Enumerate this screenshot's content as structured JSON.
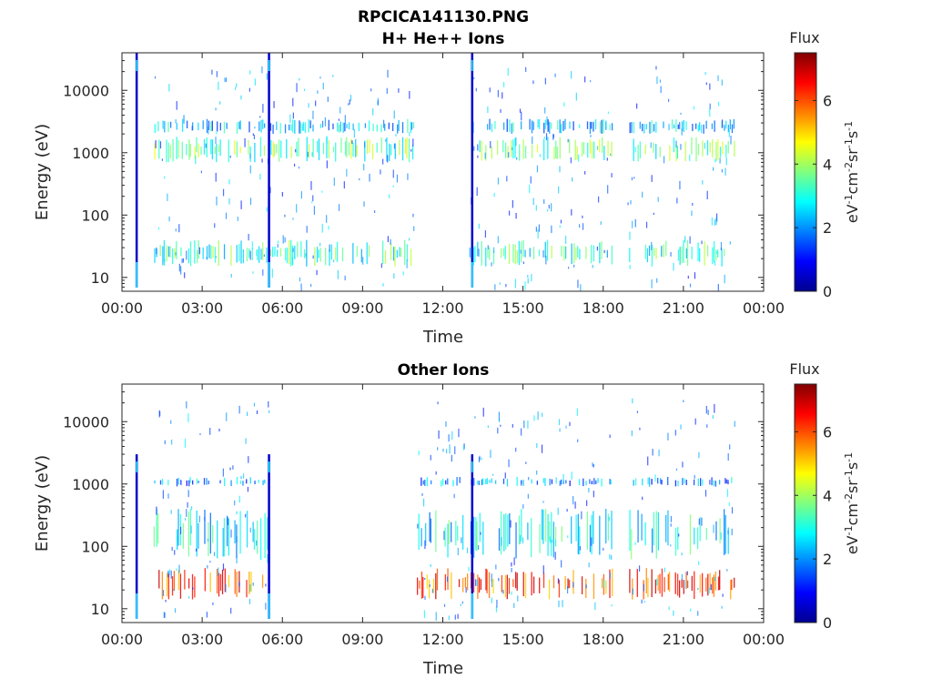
{
  "figure": {
    "title": "RPCICA141130.PNG"
  },
  "chart_data": [
    {
      "type": "heatmap",
      "title": "H+ He++ Ions",
      "xlabel": "Time",
      "ylabel": "Energy (eV)",
      "x_ticks": [
        "00:00",
        "03:00",
        "06:00",
        "09:00",
        "12:00",
        "15:00",
        "18:00",
        "21:00",
        "00:00"
      ],
      "x_range_hours": [
        0,
        24
      ],
      "y_ticks": [
        "10",
        "100",
        "1000",
        "10000"
      ],
      "y_scale": "log",
      "y_range": [
        6,
        40000
      ],
      "colorbar": {
        "title": "Flux",
        "unit_label": "eV-1cm-2sr-1s-1",
        "ticks": [
          "0",
          "2",
          "4",
          "6"
        ],
        "range": [
          0,
          7.5
        ],
        "colormap": "jet"
      },
      "vertical_events_hours": [
        0.55,
        5.5,
        13.1
      ],
      "data_gaps_hours": [
        [
          10.9,
          12.9
        ],
        [
          18.3,
          18.9
        ]
      ],
      "data_end_hours": 22.9,
      "bands": [
        {
          "energy_range": [
            700,
            1800
          ],
          "flux": 3.5
        },
        {
          "energy_range": [
            2000,
            3500
          ],
          "flux": 2.4
        },
        {
          "energy_range": [
            15,
            40
          ],
          "flux": 3.2
        }
      ]
    },
    {
      "type": "heatmap",
      "title": "Other Ions",
      "xlabel": "Time",
      "ylabel": "Energy (eV)",
      "x_ticks": [
        "00:00",
        "03:00",
        "06:00",
        "09:00",
        "12:00",
        "15:00",
        "18:00",
        "21:00",
        "00:00"
      ],
      "x_range_hours": [
        0,
        24
      ],
      "y_ticks": [
        "10",
        "100",
        "1000",
        "10000"
      ],
      "y_scale": "log",
      "y_range": [
        6,
        40000
      ],
      "colorbar": {
        "title": "Flux",
        "unit_label": "eV-1cm-2sr-1s-1",
        "ticks": [
          "0",
          "2",
          "4",
          "6"
        ],
        "range": [
          0,
          7.5
        ],
        "colormap": "jet"
      },
      "vertical_events_hours": [
        0.55,
        5.5,
        13.1
      ],
      "data_gaps_hours": [
        [
          5.5,
          11.0
        ],
        [
          18.3,
          18.9
        ]
      ],
      "data_end_hours": 22.9,
      "bands": [
        {
          "energy_range": [
            14,
            45
          ],
          "flux": 6.0
        },
        {
          "energy_range": [
            900,
            1300
          ],
          "flux": 2.0
        },
        {
          "energy_range": [
            60,
            400
          ],
          "flux": 2.8
        }
      ]
    }
  ]
}
